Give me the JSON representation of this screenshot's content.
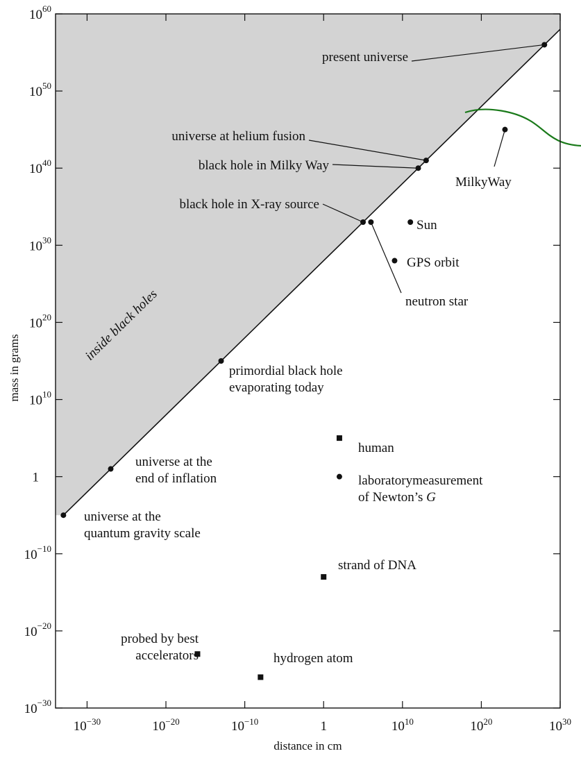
{
  "chart_data": {
    "type": "scatter",
    "title": "",
    "xlabel": "distance in cm",
    "ylabel": "mass in grams",
    "x_scale": "log",
    "y_scale": "log",
    "xlim": [
      "1e-34",
      "1e30"
    ],
    "ylim": [
      "1e-30",
      "1e60"
    ],
    "grid": false,
    "legend": "none",
    "x_ticks": [
      {
        "value": "1e-30",
        "label": "10",
        "exp": "−30"
      },
      {
        "value": "1e-20",
        "label": "10",
        "exp": "−20"
      },
      {
        "value": "1e-10",
        "label": "10",
        "exp": "−10"
      },
      {
        "value": "1",
        "label": "1",
        "exp": ""
      },
      {
        "value": "1e10",
        "label": "10",
        "exp": "10"
      },
      {
        "value": "1e20",
        "label": "10",
        "exp": "20"
      },
      {
        "value": "1e30",
        "label": "10",
        "exp": "30"
      }
    ],
    "y_ticks": [
      {
        "value": "1e-30",
        "label": "10",
        "exp": "−30"
      },
      {
        "value": "1e-20",
        "label": "10",
        "exp": "−20"
      },
      {
        "value": "1e-10",
        "label": "10",
        "exp": "−10"
      },
      {
        "value": "1",
        "label": "1",
        "exp": ""
      },
      {
        "value": "1e10",
        "label": "10",
        "exp": "10"
      },
      {
        "value": "1e20",
        "label": "10",
        "exp": "20"
      },
      {
        "value": "1e30",
        "label": "10",
        "exp": "30"
      },
      {
        "value": "1e40",
        "label": "10",
        "exp": "40"
      },
      {
        "value": "1e50",
        "label": "10",
        "exp": "50"
      },
      {
        "value": "1e60",
        "label": "10",
        "exp": "60"
      }
    ],
    "boundary_line": {
      "x": [
        "1e-33",
        "1e30"
      ],
      "y": [
        "1e-5",
        "1e58"
      ]
    },
    "region_label": "inside black holes",
    "region_color": "#d3d3d3",
    "points": [
      {
        "name": "present universe",
        "marker": "circle",
        "x": "1e28",
        "y": "1e56",
        "lines": [
          "present universe"
        ]
      },
      {
        "name": "universe at helium fusion",
        "marker": "circle",
        "x": "1e13",
        "y": "1e41",
        "lines": [
          "universe at helium fusion"
        ]
      },
      {
        "name": "black hole in Milky Way",
        "marker": "circle",
        "x": "1e12",
        "y": "1e40",
        "lines": [
          "black hole in Milky Way"
        ]
      },
      {
        "name": "black hole in X-ray source",
        "marker": "circle",
        "x": "1e5",
        "y": "1e33",
        "lines": [
          "black hole in X-ray source"
        ]
      },
      {
        "name": "neutron star",
        "marker": "circle",
        "x": "1e6",
        "y": "1e33",
        "lines": [
          "neutron star"
        ]
      },
      {
        "name": "Sun",
        "marker": "circle",
        "x": "1e11",
        "y": "1e33",
        "lines": [
          "Sun"
        ]
      },
      {
        "name": "GPS orbit",
        "marker": "circle",
        "x": "1e9",
        "y": "1e28",
        "lines": [
          "GPS orbit"
        ]
      },
      {
        "name": "MilkyWay",
        "marker": "circle",
        "x": "1e23",
        "y": "1e45",
        "lines": [
          "MilkyWay"
        ]
      },
      {
        "name": "primordial black hole evaporating today",
        "marker": "circle",
        "x": "1e-13",
        "y": "1e15",
        "lines": [
          "primordial black hole",
          "evaporating today"
        ]
      },
      {
        "name": "universe at the end of inflation",
        "marker": "circle",
        "x": "1e-27",
        "y": "1e1",
        "lines": [
          "universe at the",
          "end of inflation"
        ]
      },
      {
        "name": "universe at the quantum gravity scale",
        "marker": "circle",
        "x": "1e-33",
        "y": "1e-5",
        "lines": [
          "universe at the",
          "quantum gravity scale"
        ]
      },
      {
        "name": "human",
        "marker": "square",
        "x": "1e2",
        "y": "1e5",
        "lines": [
          "human"
        ]
      },
      {
        "name": "laboratorymeasurement of Newton's G",
        "marker": "circle",
        "x": "1e2",
        "y": "1e0",
        "lines": [
          "laboratorymeasurement",
          "of Newton’s "
        ],
        "italic_suffix": "G"
      },
      {
        "name": "strand of DNA",
        "marker": "square",
        "x": "1e0",
        "y": "1e-13",
        "lines": [
          "strand of DNA"
        ]
      },
      {
        "name": "probed by best accelerators",
        "marker": "square",
        "x": "1e-16",
        "y": "1e-23",
        "lines": [
          "probed by best",
          "accelerators"
        ]
      },
      {
        "name": "hydrogen atom",
        "marker": "square",
        "x": "1e-8",
        "y": "1e-26",
        "lines": [
          "hydrogen atom"
        ]
      }
    ],
    "annotation_curve": {
      "color": "#1a7a1a"
    }
  }
}
